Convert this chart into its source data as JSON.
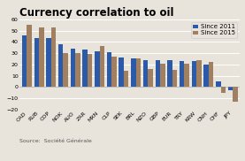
{
  "title": "Currency correlation to oil",
  "categories": [
    "CAD",
    "RUB",
    "COP",
    "NOK",
    "AUO",
    "ZAR",
    "MXN",
    "CLP",
    "SEK",
    "BRL",
    "NZO",
    "GBP",
    "EUR",
    "TRY",
    "KRW",
    "CNH",
    "CHF",
    "JPY"
  ],
  "since_2011": [
    46,
    43,
    43,
    38,
    34,
    33,
    32,
    31,
    26,
    25,
    24,
    24,
    24,
    23,
    23,
    20,
    5,
    -3
  ],
  "since_2015": [
    55,
    53,
    53,
    30,
    30,
    29,
    36,
    27,
    14,
    25,
    16,
    21,
    15,
    21,
    24,
    22,
    -5,
    -13
  ],
  "color_2011": "#2B5BA8",
  "color_2015": "#A08060",
  "legend_2011": "Since 2011",
  "legend_2015": "Since 2015",
  "ylim": [
    -20,
    60
  ],
  "yticks": [
    -20,
    -10,
    0,
    10,
    20,
    30,
    40,
    50,
    60
  ],
  "source": "Source:  Société Générale",
  "bg_color": "#E8E4DC",
  "plot_bg": "#E8E4DC",
  "grid_color": "#FFFFFF",
  "title_fontsize": 8.5,
  "tick_fontsize": 4.5,
  "legend_fontsize": 5,
  "source_fontsize": 4.5,
  "bar_width": 0.4
}
